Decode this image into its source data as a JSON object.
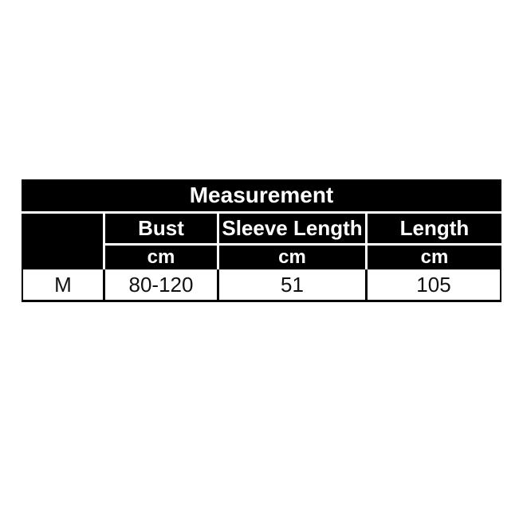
{
  "chart_data": {
    "type": "table",
    "title": "Measurement",
    "columns": [
      "",
      "Bust",
      "Sleeve Length",
      "Length"
    ],
    "units": [
      "",
      "cm",
      "cm",
      "cm"
    ],
    "rows": [
      [
        "M",
        "80-120",
        "51",
        "105"
      ]
    ]
  },
  "colors": {
    "header_bg": "#000000",
    "header_text": "#ffffff",
    "body_bg": "#ffffff",
    "body_text": "#111111",
    "border": "#000000",
    "page_bg": "#ffffff"
  }
}
